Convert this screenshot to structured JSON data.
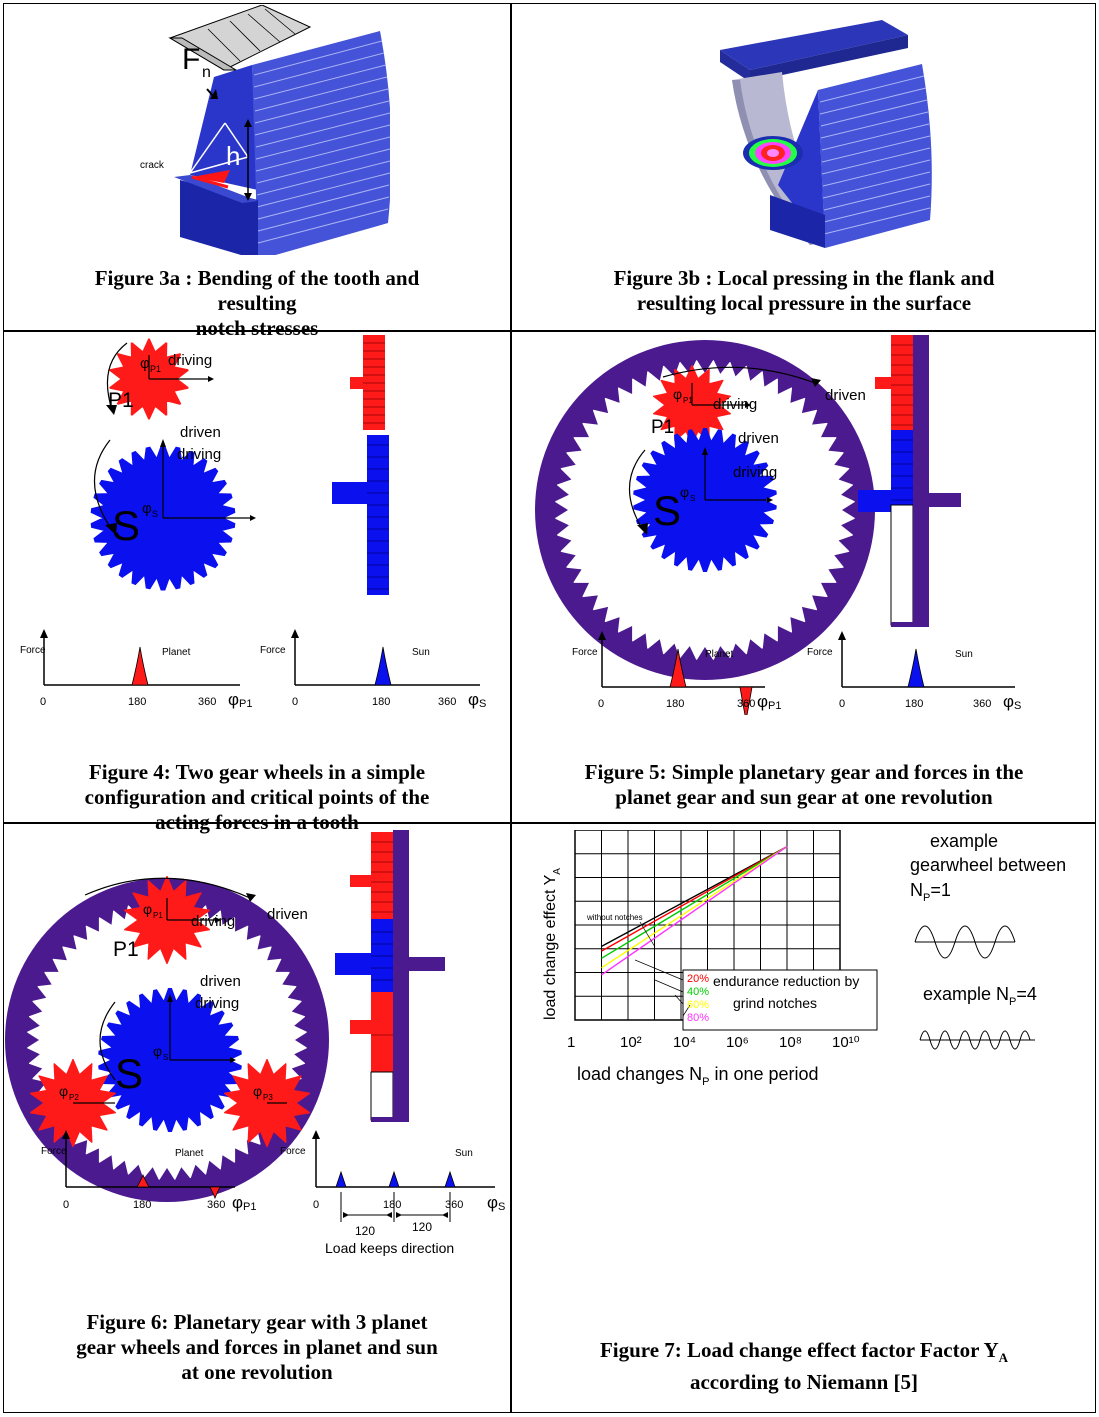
{
  "captions": {
    "fig3a": [
      "Figure 3a : Bending of the tooth and",
      "resulting",
      "notch stresses"
    ],
    "fig3b": [
      "Figure 3b : Local pressing in the flank and",
      "resulting local pressure in the surface"
    ],
    "fig4": [
      "Figure 4: Two gear wheels in a simple",
      "configuration and critical points of the",
      "acting forces in a tooth"
    ],
    "fig5": [
      "Figure 5: Simple planetary gear and forces in the",
      "planet gear and sun gear at one revolution"
    ],
    "fig6": [
      "Figure 6: Planetary gear with 3 planet",
      "gear wheels and forces in planet and sun",
      "at one revolution"
    ],
    "fig7": [
      "Figure 7: Load change effect factor Factor Y",
      "A",
      "according to Niemann [5]"
    ]
  },
  "fig3a": {
    "force_label": "F",
    "force_sub": "n",
    "h_label": "h",
    "crack_label": "crack"
  },
  "gear_labels": {
    "driving": "driving",
    "driven": "driven",
    "P1": "P1",
    "S": "S",
    "P2": "P2",
    "P3": "P3",
    "phi": "φ",
    "sub_p1": "P1",
    "sub_s": "S",
    "sub_p2": "P2",
    "sub_p3": "P3"
  },
  "force_plots": {
    "force": "Force",
    "planet": "Planet",
    "sun": "Sun",
    "zero": "0",
    "t180": "180",
    "t360": "360",
    "phi": "φ",
    "sub_p1": "P1",
    "sub_s": "S",
    "t120a": "120",
    "t120b": "120",
    "load_keeps": "Load keeps direction"
  },
  "colors": {
    "planet": "#ff1a1a",
    "sun": "#0b10ee",
    "ring": "#4b1a8f",
    "tooth": "#1f2ebd"
  },
  "fig7": {
    "ylabel": "load change effect Y",
    "ylabel_sub": "A",
    "xlabel": "load changes N",
    "xlabel_sub": "P",
    "xlabel_end": " in one period",
    "without_notches": "without notches",
    "legend": {
      "pcts": [
        "20%",
        "40%",
        "60%",
        "80%"
      ],
      "line1": "endurance reduction by",
      "line2": "grind notches"
    },
    "example1": [
      "example",
      "gearwheel between",
      "N",
      "P",
      "=1"
    ],
    "example2": [
      "example N",
      "P",
      "=4"
    ]
  },
  "chart_data": {
    "type": "line",
    "title": "",
    "xlabel": "load changes N_P in one period",
    "ylabel": "load change effect Y_A",
    "x_scale": "log",
    "xticks": [
      "1",
      "10²",
      "10⁴",
      "10⁶",
      "10⁸",
      "10¹⁰"
    ],
    "x_range": [
      1,
      10000000000
    ],
    "grid": true,
    "series": [
      {
        "name": "",
        "x": [
          10,
          100000000
        ],
        "y": [
          1.55,
          3.65
        ],
        "color": "#000000"
      },
      {
        "name": "20%",
        "x": [
          10,
          100000000
        ],
        "y": [
          1.45,
          3.65
        ],
        "color": "#ff0000"
      },
      {
        "name": "40%",
        "x": [
          10,
          100000000
        ],
        "y": [
          1.3,
          3.65
        ],
        "color": "#00cc00"
      },
      {
        "name": "60%",
        "x": [
          10,
          100000000
        ],
        "y": [
          1.1,
          3.65
        ],
        "color": "#ffff00"
      },
      {
        "name": "80%",
        "x": [
          10,
          100000000
        ],
        "y": [
          0.95,
          3.65
        ],
        "color": "#ff33ff"
      }
    ],
    "legend_position": "center-right"
  }
}
